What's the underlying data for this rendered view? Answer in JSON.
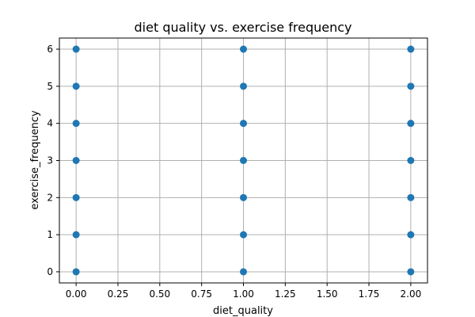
{
  "chart_data": {
    "type": "scatter",
    "title": "diet quality vs. exercise frequency",
    "xlabel": "diet_quality",
    "ylabel": "exercise_frequency",
    "xlim": [
      -0.1,
      2.1
    ],
    "ylim": [
      -0.3,
      6.3
    ],
    "grid": true,
    "marker_color": "#1f77b4",
    "x_ticks": [
      0.0,
      0.25,
      0.5,
      0.75,
      1.0,
      1.25,
      1.5,
      1.75,
      2.0
    ],
    "x_tick_labels": [
      "0.00",
      "0.25",
      "0.50",
      "0.75",
      "1.00",
      "1.25",
      "1.50",
      "1.75",
      "2.00"
    ],
    "y_ticks": [
      0,
      1,
      2,
      3,
      4,
      5,
      6
    ],
    "y_tick_labels": [
      "0",
      "1",
      "2",
      "3",
      "4",
      "5",
      "6"
    ],
    "points": [
      {
        "x": 0,
        "y": 0
      },
      {
        "x": 0,
        "y": 1
      },
      {
        "x": 0,
        "y": 2
      },
      {
        "x": 0,
        "y": 3
      },
      {
        "x": 0,
        "y": 4
      },
      {
        "x": 0,
        "y": 5
      },
      {
        "x": 0,
        "y": 6
      },
      {
        "x": 1,
        "y": 0
      },
      {
        "x": 1,
        "y": 1
      },
      {
        "x": 1,
        "y": 2
      },
      {
        "x": 1,
        "y": 3
      },
      {
        "x": 1,
        "y": 4
      },
      {
        "x": 1,
        "y": 5
      },
      {
        "x": 1,
        "y": 6
      },
      {
        "x": 2,
        "y": 0
      },
      {
        "x": 2,
        "y": 1
      },
      {
        "x": 2,
        "y": 2
      },
      {
        "x": 2,
        "y": 3
      },
      {
        "x": 2,
        "y": 4
      },
      {
        "x": 2,
        "y": 5
      },
      {
        "x": 2,
        "y": 6
      }
    ]
  }
}
